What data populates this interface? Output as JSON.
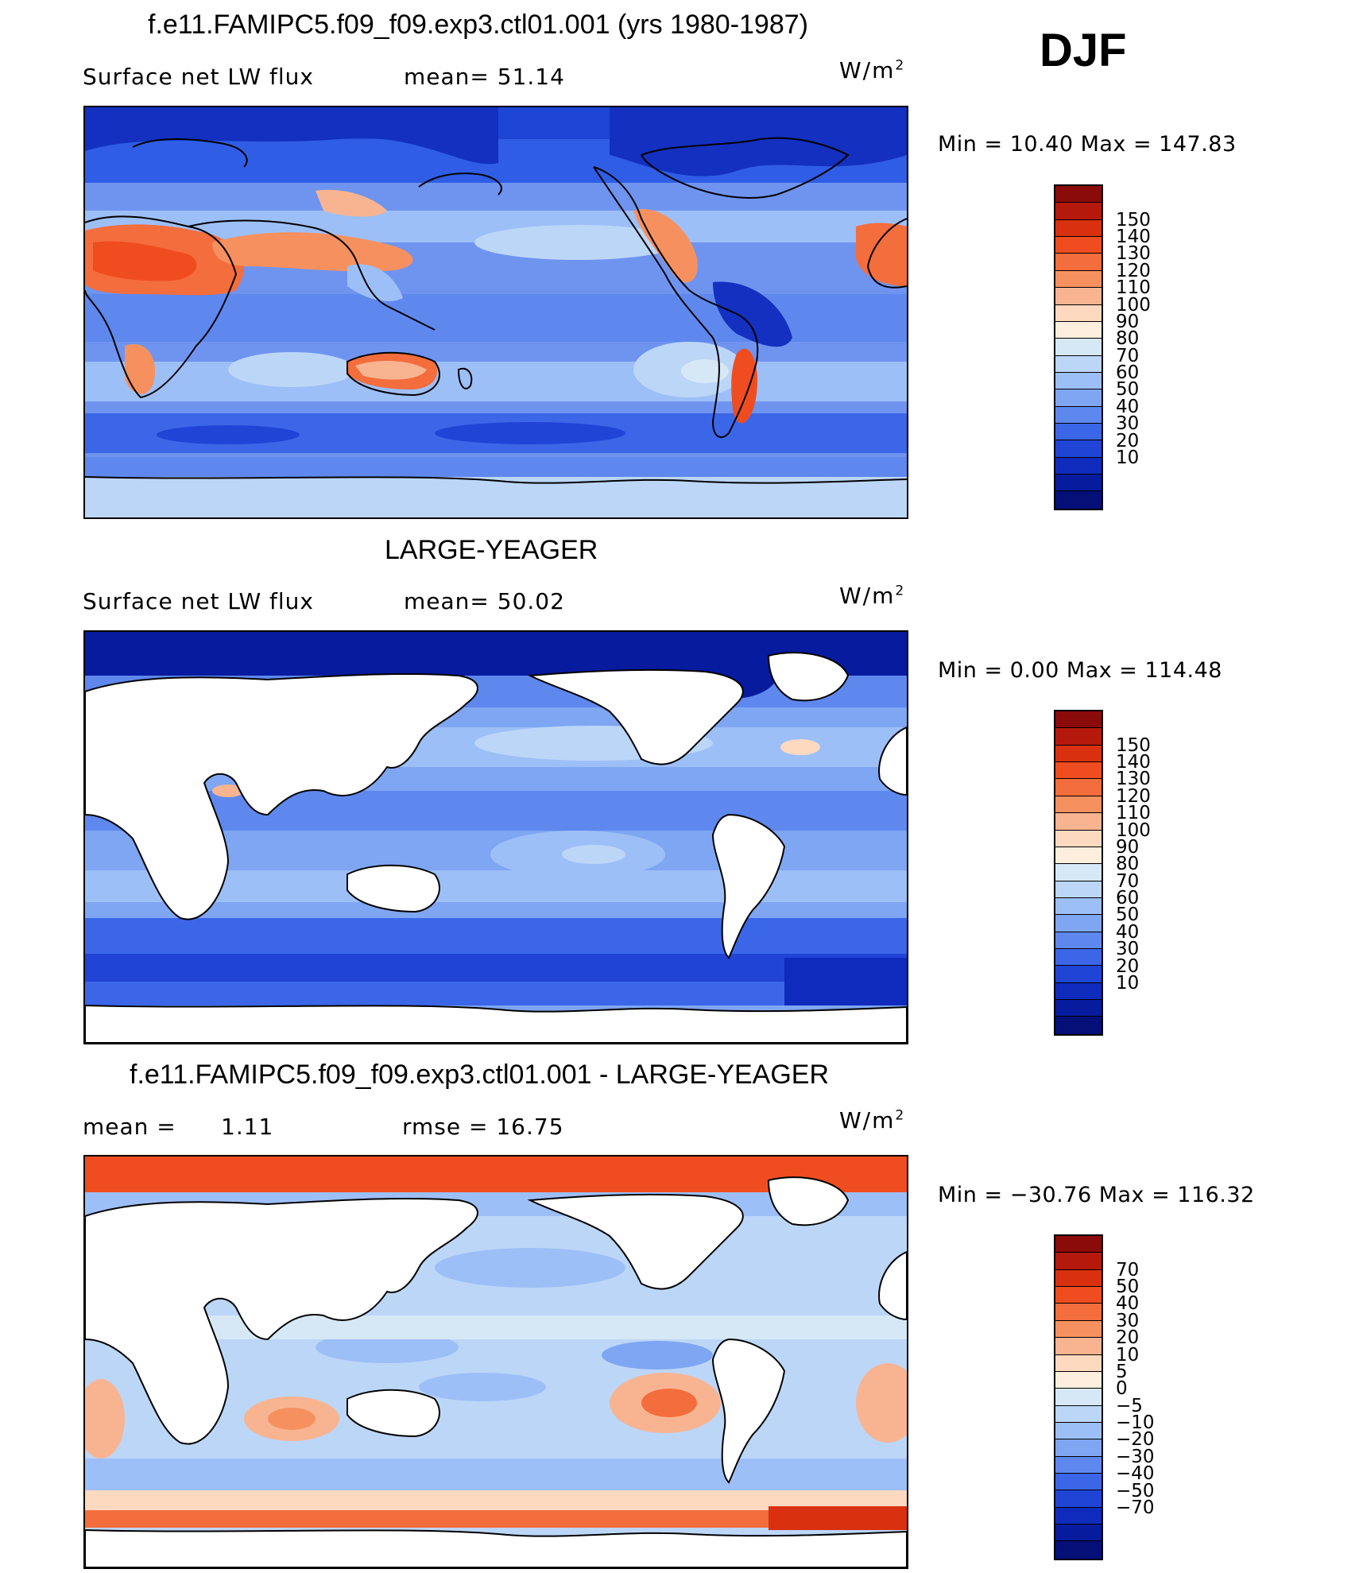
{
  "season": "DJF",
  "panels": [
    {
      "title": "f.e11.FAMIPC5.f09_f09.exp3.ctl01.001 (yrs 1980-1987)",
      "variable": "Surface net LW flux",
      "stat1": "mean=   51.14",
      "stat2": "",
      "units": "W/m",
      "units_sup": "2",
      "minmax": "Min =    10.40  Max  =  147.83",
      "land_mask": false,
      "colorbar": {
        "labels": [
          "150",
          "140",
          "130",
          "120",
          "110",
          "100",
          "90",
          "80",
          "70",
          "60",
          "50",
          "40",
          "30",
          "20",
          "10"
        ],
        "colors": [
          "#8b0a0a",
          "#b5190b",
          "#d9300f",
          "#ef4d1f",
          "#f46d3c",
          "#f6915f",
          "#f8b491",
          "#fdd9c0",
          "#fdeedd",
          "#d6e8f6",
          "#bcd6f8",
          "#9dbff7",
          "#7fa6f2",
          "#5e88ee",
          "#3b66e8",
          "#2044d6",
          "#0f2bbd",
          "#071b9e",
          "#040f78"
        ]
      }
    },
    {
      "title": "LARGE-YEAGER",
      "variable": "Surface net LW flux",
      "stat1": "mean=   50.02",
      "stat2": "",
      "units": "W/m",
      "units_sup": "2",
      "minmax": "Min =     0.00  Max  =  114.48",
      "land_mask": true,
      "colorbar": {
        "labels": [
          "150",
          "140",
          "130",
          "120",
          "110",
          "100",
          "90",
          "80",
          "70",
          "60",
          "50",
          "40",
          "30",
          "20",
          "10"
        ],
        "colors": [
          "#8b0a0a",
          "#b5190b",
          "#d9300f",
          "#ef4d1f",
          "#f46d3c",
          "#f6915f",
          "#f8b491",
          "#fdd9c0",
          "#fdeedd",
          "#d6e8f6",
          "#bcd6f8",
          "#9dbff7",
          "#7fa6f2",
          "#5e88ee",
          "#3b66e8",
          "#2044d6",
          "#0f2bbd",
          "#071b9e",
          "#040f78"
        ]
      }
    },
    {
      "title": "f.e11.FAMIPC5.f09_f09.exp3.ctl01.001 - LARGE-YEAGER",
      "variable": "mean  =",
      "stat1": "1.11",
      "stat2": "rmse  =     16.75",
      "units": "W/m",
      "units_sup": "2",
      "minmax": "Min  = −30.76  Max  =  116.32",
      "land_mask": true,
      "colorbar": {
        "labels": [
          "70",
          "50",
          "40",
          "30",
          "20",
          "10",
          "5",
          "0",
          "−5",
          "−10",
          "−20",
          "−30",
          "−40",
          "−50",
          "−70"
        ],
        "colors": [
          "#8b0a0a",
          "#b5190b",
          "#d9300f",
          "#ef4d1f",
          "#f46d3c",
          "#f6915f",
          "#f8b491",
          "#fdd9c0",
          "#fdeedd",
          "#d6e8f6",
          "#bcd6f8",
          "#9dbff7",
          "#7fa6f2",
          "#5e88ee",
          "#3b66e8",
          "#2044d6",
          "#0f2bbd",
          "#071b9e",
          "#040f78"
        ]
      }
    }
  ]
}
